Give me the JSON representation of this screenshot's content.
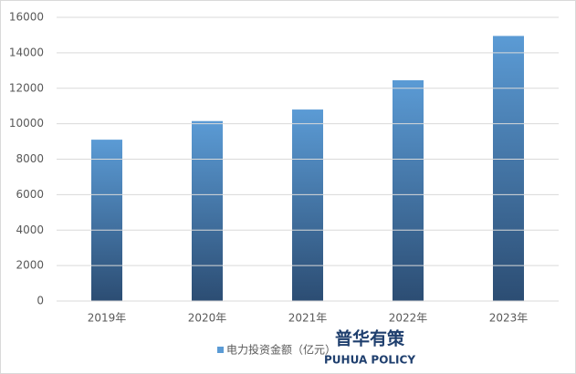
{
  "chart_data": {
    "type": "bar",
    "categories": [
      "2019年",
      "2020年",
      "2021年",
      "2022年",
      "2023年"
    ],
    "series": [
      {
        "name": "电力投资金额（亿元）",
        "color": "#5b9bd5",
        "values": [
          9100,
          10150,
          10800,
          12450,
          14950
        ]
      }
    ],
    "ylim": [
      0,
      16000
    ],
    "yticks": [
      0,
      2000,
      4000,
      6000,
      8000,
      10000,
      12000,
      14000,
      16000
    ],
    "grid": true,
    "legend": "bottom",
    "annotations": [
      "普华有策",
      "PUHUA POLICY"
    ]
  }
}
